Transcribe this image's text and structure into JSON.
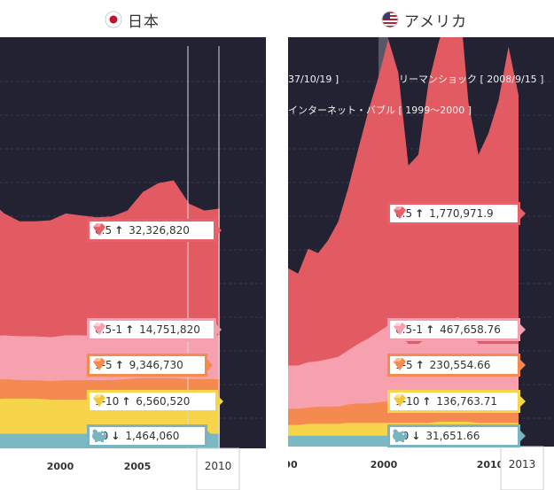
{
  "panels": [
    {
      "id": "jp",
      "title": "日本",
      "flag": "japan-flag-icon",
      "end_year": "2010",
      "tick_labels": [
        "2000",
        "2005"
      ],
      "events": [],
      "callouts": [
        {
          "category": "0.5",
          "direction": "↑",
          "value": "32,326,820",
          "icon": "ruby-gem-icon",
          "color": "#e8606a"
        },
        {
          "category": "0.5-1",
          "direction": "↑",
          "value": "14,751,820",
          "icon": "pink-gem-icon",
          "color": "#f5a0b0"
        },
        {
          "category": "1-5",
          "direction": "↑",
          "value": "9,346,730",
          "icon": "orange-gem-icon",
          "color": "#f58a50"
        },
        {
          "category": "1-10",
          "direction": "↑",
          "value": "6,560,520",
          "icon": "yellow-gem-icon",
          "color": "#f7d54a"
        },
        {
          "category": "90",
          "direction": "↓",
          "value": "1,464,060",
          "icon": "piggy-bank-icon",
          "color": "#7ab4c0"
        }
      ]
    },
    {
      "id": "us",
      "title": "アメリカ",
      "flag": "us-flag-icon",
      "end_year": "2013",
      "tick_labels": [
        "90",
        "2000",
        "2010"
      ],
      "events": [
        "37/10/19 ]",
        "リーマンショック [ 2008/9/15 ]",
        "インターネット・バブル [ 1999〜2000 ]"
      ],
      "callouts": [
        {
          "category": "0.5",
          "direction": "↑",
          "value": "1,770,971.9",
          "icon": "ruby-gem-icon",
          "color": "#e8606a"
        },
        {
          "category": "0.5-1",
          "direction": "↑",
          "value": "467,658.76",
          "icon": "pink-gem-icon",
          "color": "#f5a0b0"
        },
        {
          "category": "1-5",
          "direction": "↑",
          "value": "230,554.66",
          "icon": "orange-gem-icon",
          "color": "#f58a50"
        },
        {
          "category": "1-10",
          "direction": "↑",
          "value": "136,763.71",
          "icon": "yellow-gem-icon",
          "color": "#f7d54a"
        },
        {
          "category": "90",
          "direction": "↓",
          "value": "31,651.66",
          "icon": "piggy-bank-icon",
          "color": "#7ab4c0"
        }
      ]
    }
  ],
  "chart_data": [
    {
      "type": "area",
      "title": "日本",
      "x": [
        1994,
        1995,
        1996,
        1997,
        1998,
        1999,
        2000,
        2001,
        2002,
        2003,
        2004,
        2005,
        2006,
        2007,
        2008,
        2009,
        2010
      ],
      "x_ticks": [
        2000,
        2005
      ],
      "series": [
        {
          "name": "90",
          "values": [
            15,
            15,
            15,
            15,
            15,
            15,
            15,
            15,
            15,
            15,
            15,
            15,
            15,
            15,
            15,
            15,
            15
          ]
        },
        {
          "name": "1-10",
          "values": [
            35,
            35,
            36,
            36,
            36,
            35,
            35,
            35,
            35,
            35,
            36,
            37,
            37,
            37,
            36,
            36,
            36
          ]
        },
        {
          "name": "1-5",
          "values": [
            20,
            20,
            20,
            19,
            19,
            19,
            20,
            20,
            20,
            20,
            20,
            20,
            20,
            20,
            20,
            20,
            20
          ]
        },
        {
          "name": "0.5-1",
          "values": [
            45,
            45,
            45,
            45,
            45,
            45,
            46,
            46,
            45,
            45,
            45,
            46,
            46,
            46,
            45,
            45,
            45
          ]
        },
        {
          "name": "0.5",
          "values": [
            145,
            140,
            125,
            118,
            118,
            120,
            125,
            123,
            122,
            123,
            128,
            145,
            154,
            157,
            135,
            128,
            130
          ]
        }
      ]
    },
    {
      "type": "area",
      "title": "アメリカ",
      "x": [
        1990,
        1991,
        1992,
        1993,
        1994,
        1995,
        1996,
        1997,
        1998,
        1999,
        2000,
        2001,
        2002,
        2003,
        2004,
        2005,
        2006,
        2007,
        2008,
        2009,
        2010,
        2011,
        2012,
        2013
      ],
      "x_ticks": [
        1990,
        2000,
        2010
      ],
      "series": [
        {
          "name": "90",
          "values": [
            10,
            10,
            10,
            10,
            10,
            10,
            10,
            10,
            10,
            10,
            10,
            10,
            10,
            10,
            10,
            10,
            10,
            10,
            10,
            10,
            10,
            10,
            10,
            10
          ]
        },
        {
          "name": "1-10",
          "values": [
            10,
            10,
            11,
            11,
            11,
            11,
            12,
            12,
            12,
            12,
            12,
            12,
            12,
            12,
            12,
            13,
            13,
            13,
            13,
            12,
            12,
            12,
            12,
            12
          ]
        },
        {
          "name": "1-5",
          "values": [
            15,
            15,
            15,
            16,
            16,
            16,
            17,
            18,
            18,
            19,
            20,
            19,
            18,
            18,
            19,
            20,
            21,
            22,
            20,
            18,
            18,
            18,
            18,
            18
          ]
        },
        {
          "name": "0.5-1",
          "values": [
            40,
            40,
            42,
            42,
            44,
            46,
            50,
            55,
            60,
            65,
            70,
            65,
            55,
            55,
            60,
            65,
            70,
            75,
            65,
            55,
            55,
            55,
            55,
            55
          ]
        },
        {
          "name": "0.5",
          "values": [
            90,
            85,
            105,
            100,
            110,
            125,
            150,
            180,
            210,
            235,
            265,
            240,
            165,
            175,
            235,
            265,
            290,
            305,
            210,
            175,
            195,
            225,
            275,
            230
          ]
        }
      ]
    }
  ]
}
